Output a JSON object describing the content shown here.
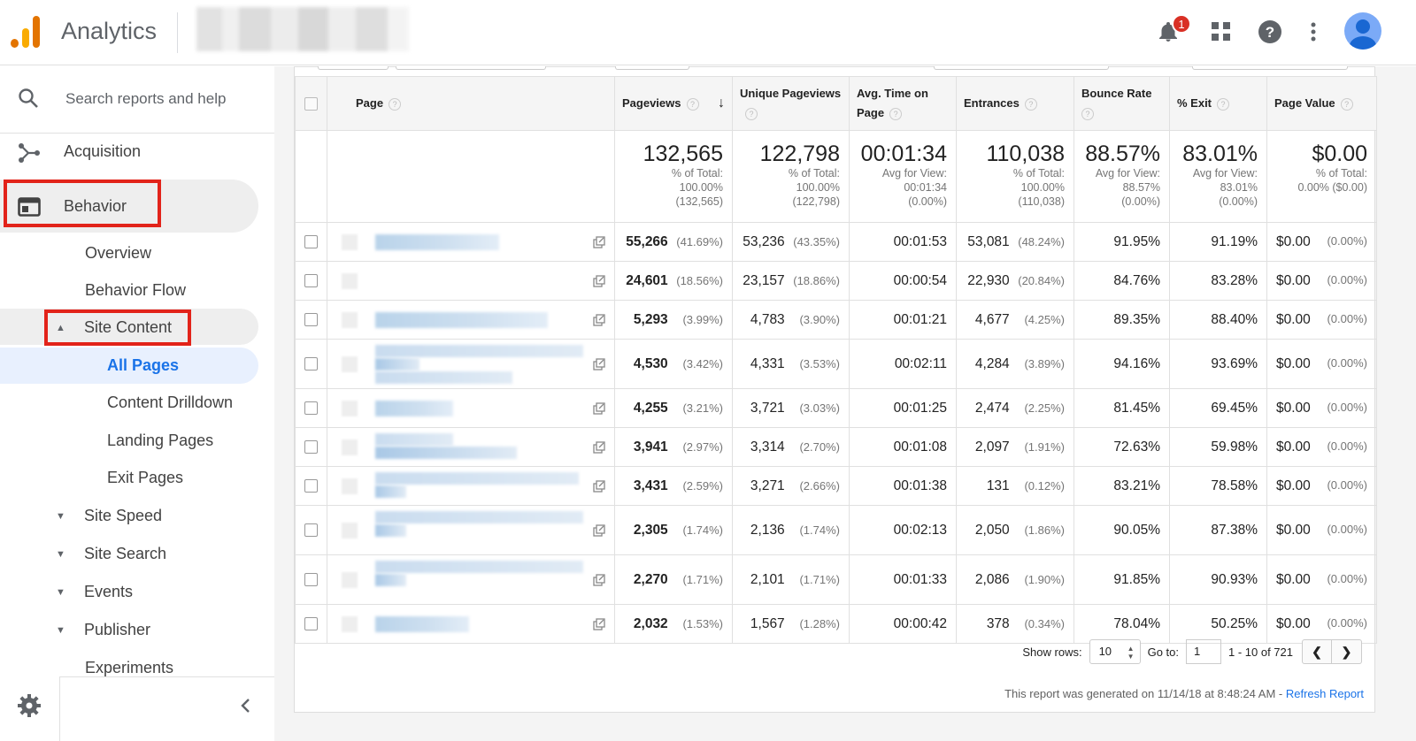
{
  "header": {
    "app_title": "Analytics",
    "notification_count": "1",
    "icons": [
      "bell-icon",
      "apps-grid-icon",
      "help-icon",
      "more-vert-icon",
      "avatar"
    ]
  },
  "sidebar": {
    "search_placeholder": "Search reports and help",
    "acquisition": "Acquisition",
    "behavior": "Behavior",
    "overview": "Overview",
    "behavior_flow": "Behavior Flow",
    "site_content": "Site Content",
    "all_pages": "All Pages",
    "content_drilldown": "Content Drilldown",
    "landing_pages": "Landing Pages",
    "exit_pages": "Exit Pages",
    "site_speed": "Site Speed",
    "site_search": "Site Search",
    "events": "Events",
    "publisher": "Publisher",
    "experiments": "Experiments"
  },
  "table": {
    "headers": {
      "page": "Page",
      "pageviews": "Pageviews",
      "unique_pageviews": "Unique Pageviews",
      "avg_time": "Avg. Time on Page",
      "entrances": "Entrances",
      "bounce_rate": "Bounce Rate",
      "exit": "% Exit",
      "page_value": "Page Value"
    },
    "totals": {
      "pageviews": {
        "big": "132,565",
        "l1": "% of Total:",
        "l2": "100.00%",
        "l3": "(132,565)"
      },
      "unique": {
        "big": "122,798",
        "l1": "% of Total:",
        "l2": "100.00%",
        "l3": "(122,798)"
      },
      "avg_time": {
        "big": "00:01:34",
        "l1": "Avg for View:",
        "l2": "00:01:34",
        "l3": "(0.00%)"
      },
      "entrances": {
        "big": "110,038",
        "l1": "% of Total:",
        "l2": "100.00%",
        "l3": "(110,038)"
      },
      "bounce": {
        "big": "88.57%",
        "l1": "Avg for View:",
        "l2": "88.57%",
        "l3": "(0.00%)"
      },
      "exit": {
        "big": "83.01%",
        "l1": "Avg for View:",
        "l2": "83.01%",
        "l3": "(0.00%)"
      },
      "value": {
        "big": "$0.00",
        "l1": "% of Total:",
        "l2": "0.00% ($0.00)",
        "l3": ""
      }
    },
    "rows": [
      {
        "pv": "55,266",
        "pvp": "(41.69%)",
        "up": "53,236",
        "upp": "(43.35%)",
        "t": "00:01:53",
        "en": "53,081",
        "enp": "(48.24%)",
        "br": "91.95%",
        "ex": "91.19%",
        "val": "$0.00",
        "valp": "(0.00%)"
      },
      {
        "pv": "24,601",
        "pvp": "(18.56%)",
        "up": "23,157",
        "upp": "(18.86%)",
        "t": "00:00:54",
        "en": "22,930",
        "enp": "(20.84%)",
        "br": "84.76%",
        "ex": "83.28%",
        "val": "$0.00",
        "valp": "(0.00%)"
      },
      {
        "pv": "5,293",
        "pvp": "(3.99%)",
        "up": "4,783",
        "upp": "(3.90%)",
        "t": "00:01:21",
        "en": "4,677",
        "enp": "(4.25%)",
        "br": "89.35%",
        "ex": "88.40%",
        "val": "$0.00",
        "valp": "(0.00%)"
      },
      {
        "pv": "4,530",
        "pvp": "(3.42%)",
        "up": "4,331",
        "upp": "(3.53%)",
        "t": "00:02:11",
        "en": "4,284",
        "enp": "(3.89%)",
        "br": "94.16%",
        "ex": "93.69%",
        "val": "$0.00",
        "valp": "(0.00%)"
      },
      {
        "pv": "4,255",
        "pvp": "(3.21%)",
        "up": "3,721",
        "upp": "(3.03%)",
        "t": "00:01:25",
        "en": "2,474",
        "enp": "(2.25%)",
        "br": "81.45%",
        "ex": "69.45%",
        "val": "$0.00",
        "valp": "(0.00%)"
      },
      {
        "pv": "3,941",
        "pvp": "(2.97%)",
        "up": "3,314",
        "upp": "(2.70%)",
        "t": "00:01:08",
        "en": "2,097",
        "enp": "(1.91%)",
        "br": "72.63%",
        "ex": "59.98%",
        "val": "$0.00",
        "valp": "(0.00%)"
      },
      {
        "pv": "3,431",
        "pvp": "(2.59%)",
        "up": "3,271",
        "upp": "(2.66%)",
        "t": "00:01:38",
        "en": "131",
        "enp": "(0.12%)",
        "br": "83.21%",
        "ex": "78.58%",
        "val": "$0.00",
        "valp": "(0.00%)"
      },
      {
        "pv": "2,305",
        "pvp": "(1.74%)",
        "up": "2,136",
        "upp": "(1.74%)",
        "t": "00:02:13",
        "en": "2,050",
        "enp": "(1.86%)",
        "br": "90.05%",
        "ex": "87.38%",
        "val": "$0.00",
        "valp": "(0.00%)"
      },
      {
        "pv": "2,270",
        "pvp": "(1.71%)",
        "up": "2,101",
        "upp": "(1.71%)",
        "t": "00:01:33",
        "en": "2,086",
        "enp": "(1.90%)",
        "br": "91.85%",
        "ex": "90.93%",
        "val": "$0.00",
        "valp": "(0.00%)"
      },
      {
        "pv": "2,032",
        "pvp": "(1.53%)",
        "up": "1,567",
        "upp": "(1.28%)",
        "t": "00:00:42",
        "en": "378",
        "enp": "(0.34%)",
        "br": "78.04%",
        "ex": "50.25%",
        "val": "$0.00",
        "valp": "(0.00%)"
      }
    ]
  },
  "pager": {
    "show_rows_label": "Show rows:",
    "rows_value": "10",
    "goto_label": "Go to:",
    "goto_value": "1",
    "range": "1 - 10 of 721"
  },
  "footer": {
    "generated": "This report was generated on 11/14/18 at 8:48:24 AM - ",
    "refresh": "Refresh Report"
  },
  "colors": {
    "highlight_red": "#e2231a",
    "active_blue": "#1a73e8",
    "badge_red": "#d93025"
  }
}
